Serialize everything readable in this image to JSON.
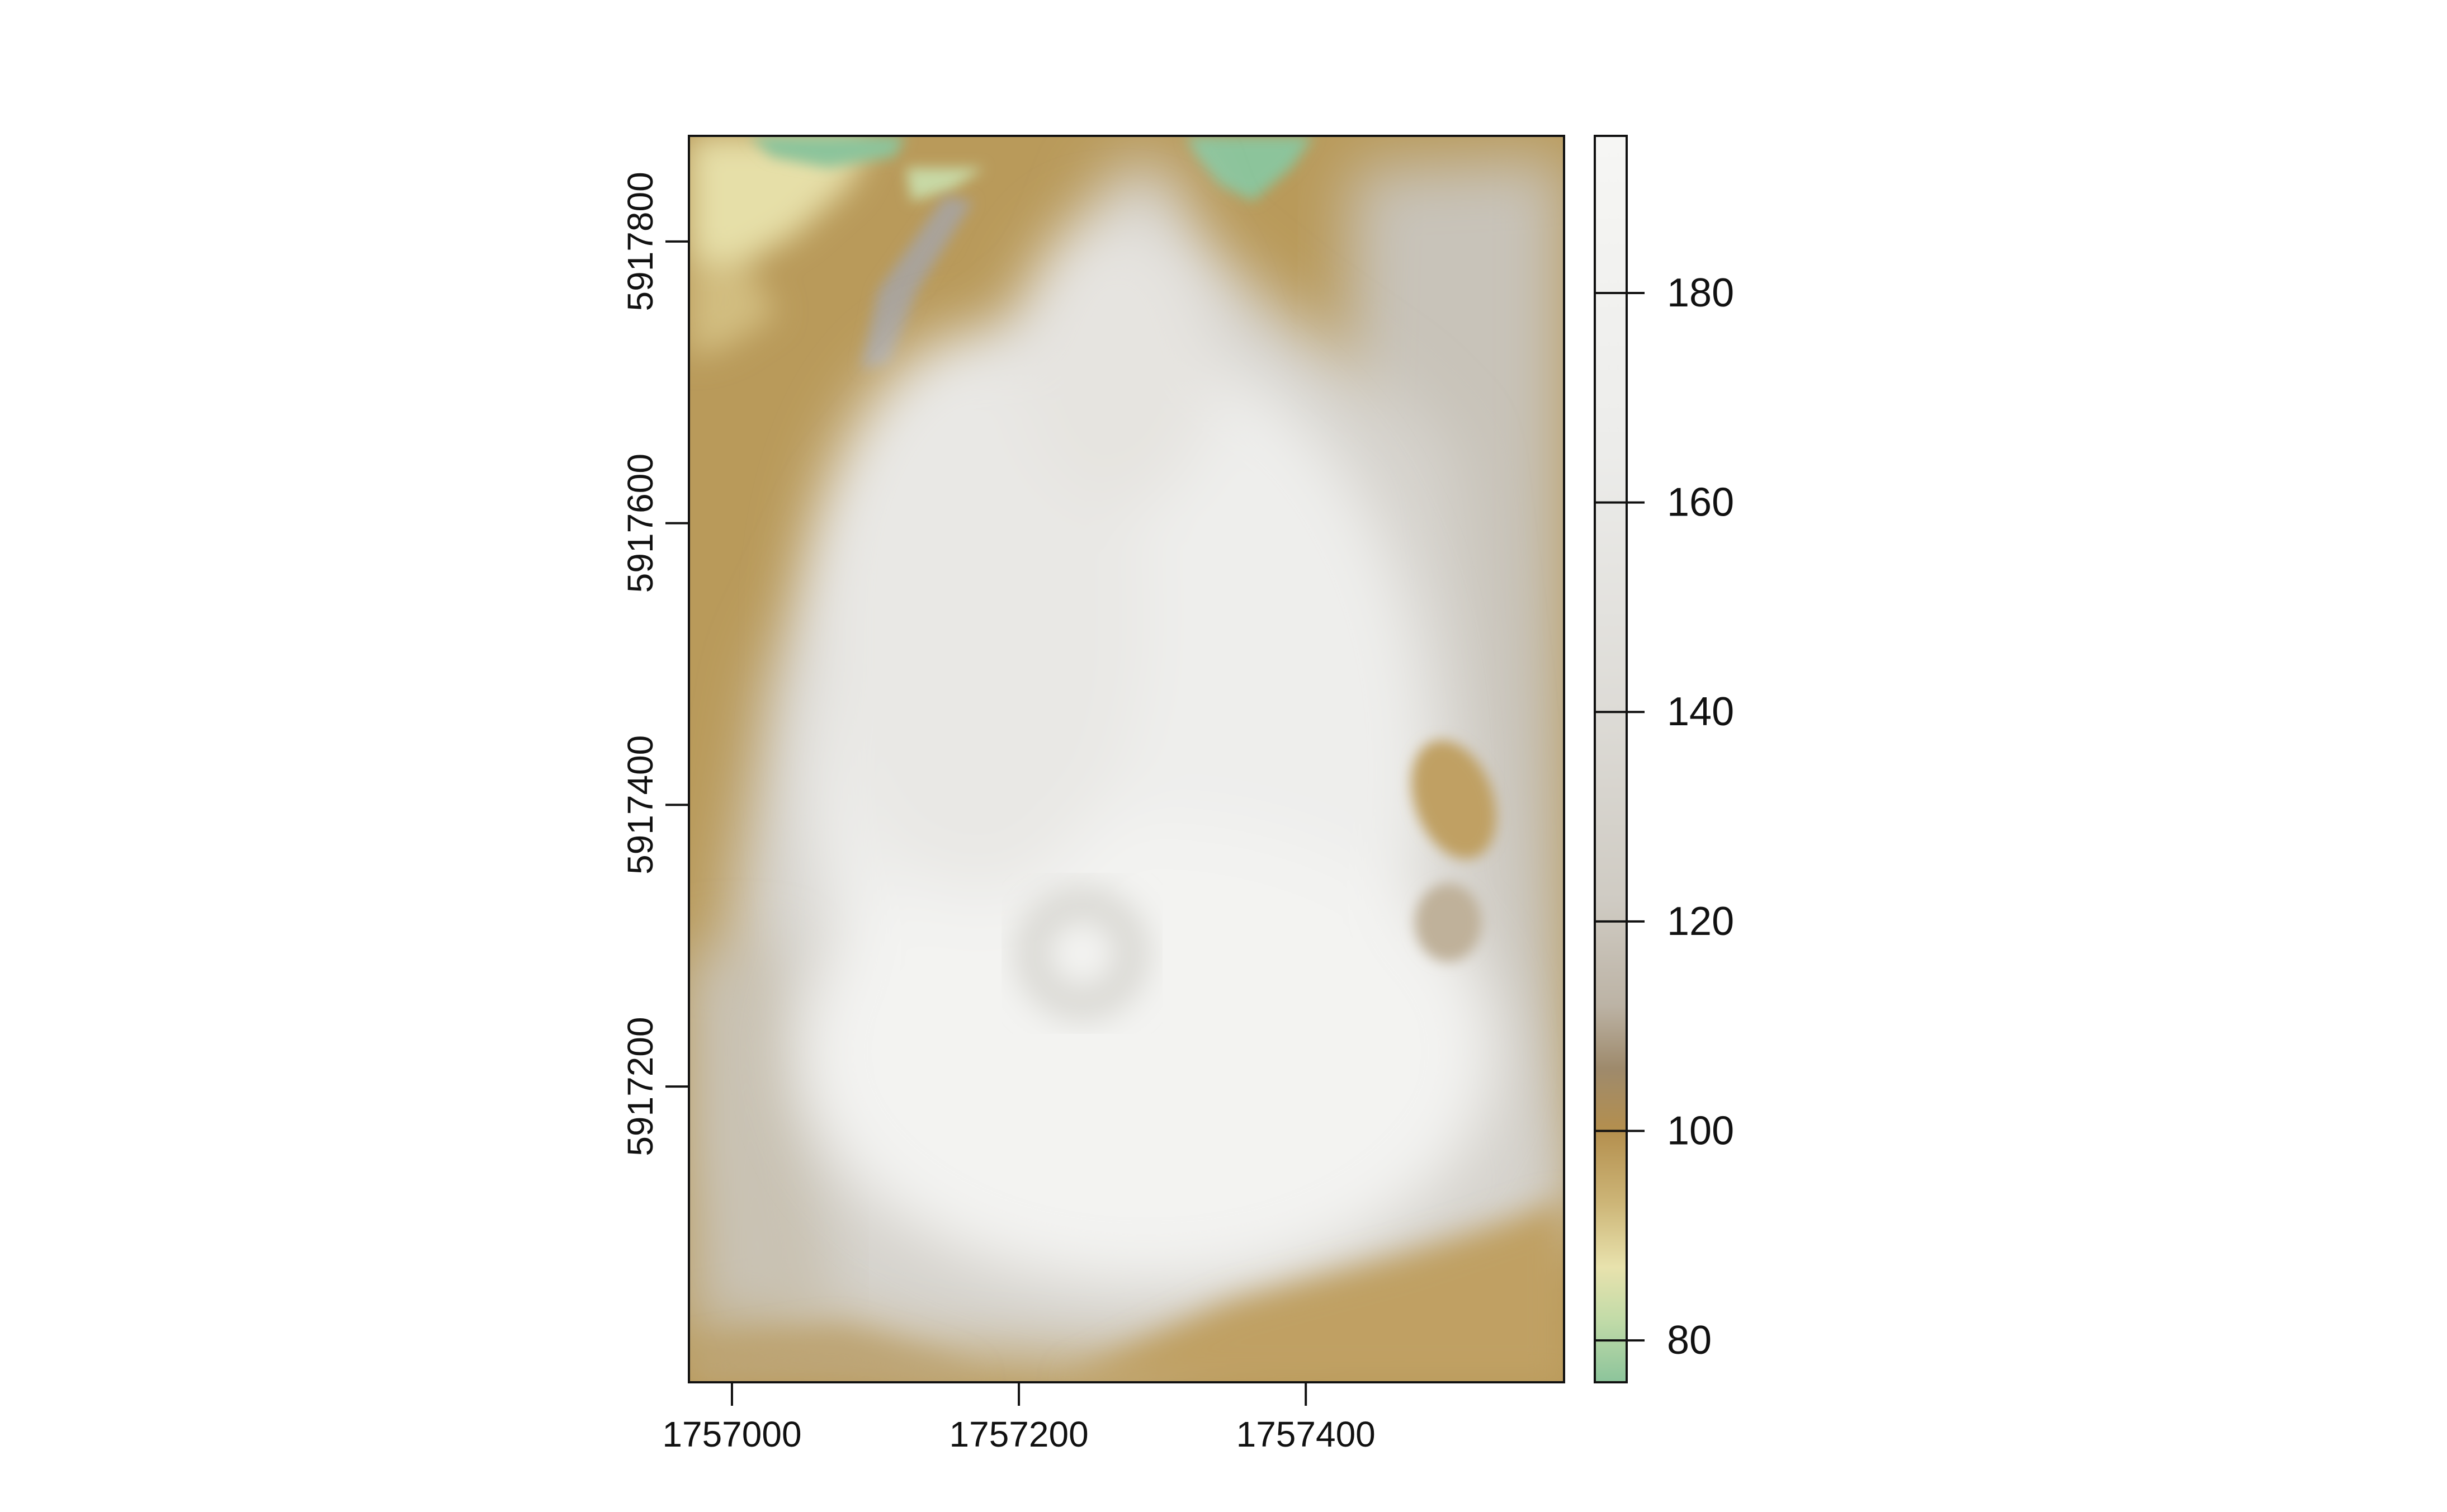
{
  "map": {
    "x_ticks": [
      {
        "value": 1757000,
        "label": "1757000"
      },
      {
        "value": 1757200,
        "label": "1757200"
      },
      {
        "value": 1757400,
        "label": "1757400"
      }
    ],
    "y_ticks": [
      {
        "value": 5917800,
        "label": "5917800"
      },
      {
        "value": 5917600,
        "label": "5917600"
      },
      {
        "value": 5917400,
        "label": "5917400"
      },
      {
        "value": 5917200,
        "label": "5917200"
      }
    ],
    "xlim": [
      1756970,
      1757580
    ],
    "ylim": [
      5916990,
      5917875
    ],
    "colors": {
      "low_green": "#8cc49b",
      "light_yellow": "#e8e2a8",
      "tan": "#b99a5a",
      "gray": "#cfcbc3",
      "light": "#f2f2f0",
      "frame": "#111111"
    }
  },
  "legend": {
    "range": [
      76,
      195
    ],
    "ticks": [
      {
        "value": 180,
        "label": "180"
      },
      {
        "value": 160,
        "label": "160"
      },
      {
        "value": 140,
        "label": "140"
      },
      {
        "value": 120,
        "label": "120"
      },
      {
        "value": 100,
        "label": "100"
      },
      {
        "value": 80,
        "label": "80"
      }
    ],
    "stops": [
      {
        "value": 76,
        "color": "#8cc49b"
      },
      {
        "value": 82,
        "color": "#c2dba8"
      },
      {
        "value": 87,
        "color": "#e8e2ad"
      },
      {
        "value": 93,
        "color": "#cdb678"
      },
      {
        "value": 100,
        "color": "#b48f4e"
      },
      {
        "value": 106,
        "color": "#9e8a6c"
      },
      {
        "value": 112,
        "color": "#bcb3a5"
      },
      {
        "value": 122,
        "color": "#cfcbc3"
      },
      {
        "value": 140,
        "color": "#dddbd6"
      },
      {
        "value": 165,
        "color": "#ececea"
      },
      {
        "value": 195,
        "color": "#f6f6f4"
      }
    ]
  }
}
